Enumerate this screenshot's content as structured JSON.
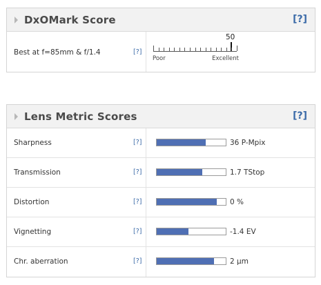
{
  "dxomark": {
    "title": "DxOMark Score",
    "help": "[?]",
    "row": {
      "label": "Best at f=85mm & f/1.4",
      "help": "[?]",
      "score": "50",
      "score_fraction": 0.93,
      "scale_low": "Poor",
      "scale_high": "Excellent"
    }
  },
  "lens_metrics": {
    "title": "Lens Metric Scores",
    "help": "[?]",
    "rows": [
      {
        "label": "Sharpness",
        "help": "[?]",
        "value": "36 P-Mpix",
        "fill": 0.71
      },
      {
        "label": "Transmission",
        "help": "[?]",
        "value": "1.7 TStop",
        "fill": 0.66
      },
      {
        "label": "Distortion",
        "help": "[?]",
        "value": "0 %",
        "fill": 0.87
      },
      {
        "label": "Vignetting",
        "help": "[?]",
        "value": "-1.4 EV",
        "fill": 0.46
      },
      {
        "label": "Chr. aberration",
        "help": "[?]",
        "value": "2 µm",
        "fill": 0.83
      }
    ]
  },
  "colors": {
    "bar_fill": "#4f6fb4",
    "help_link": "#3a6aa8"
  }
}
